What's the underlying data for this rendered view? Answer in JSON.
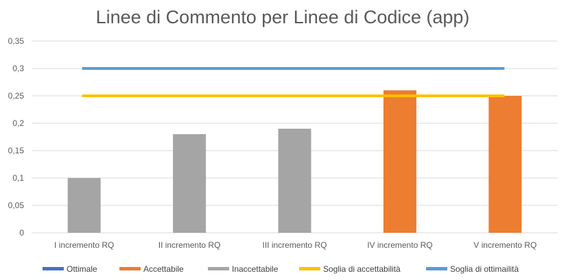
{
  "chart_data": {
    "type": "bar",
    "title": "Linee di Commento per Linee di Codice (app)",
    "categories": [
      "I incremento RQ",
      "II incremento RQ",
      "III incremento RQ",
      "IV incremento RQ",
      "V incremento RQ"
    ],
    "values": [
      0.1,
      0.18,
      0.19,
      0.26,
      0.25
    ],
    "bar_classes": [
      "Inaccettabile",
      "Inaccettabile",
      "Inaccettabile",
      "Accettabile",
      "Accettabile"
    ],
    "ylim": [
      0,
      0.35
    ],
    "yticks": [
      0,
      0.05,
      0.1,
      0.15,
      0.2,
      0.25,
      0.3,
      0.35
    ],
    "ytick_labels": [
      "0",
      "0,05",
      "0,1",
      "0,15",
      "0,2",
      "0,25",
      "0,3",
      "0,35"
    ],
    "thresholds": [
      {
        "name": "Soglia di accettabilità",
        "value": 0.25,
        "color": "#FFC000"
      },
      {
        "name": "Soglia di ottimailità",
        "value": 0.3,
        "color": "#5B9BD5"
      }
    ],
    "legend": [
      {
        "name": "Ottimale",
        "color": "#4472C4",
        "kind": "bar"
      },
      {
        "name": "Accettabile",
        "color": "#ED7D31",
        "kind": "bar"
      },
      {
        "name": "Inaccettabile",
        "color": "#A5A5A5",
        "kind": "bar"
      },
      {
        "name": "Soglia di accettabilità",
        "color": "#FFC000",
        "kind": "line"
      },
      {
        "name": "Soglia di ottimailità",
        "color": "#5B9BD5",
        "kind": "line"
      }
    ],
    "legend_position": "bottom",
    "grid": true,
    "colors": {
      "Ottimale": "#4472C4",
      "Accettabile": "#ED7D31",
      "Inaccettabile": "#A5A5A5"
    }
  }
}
